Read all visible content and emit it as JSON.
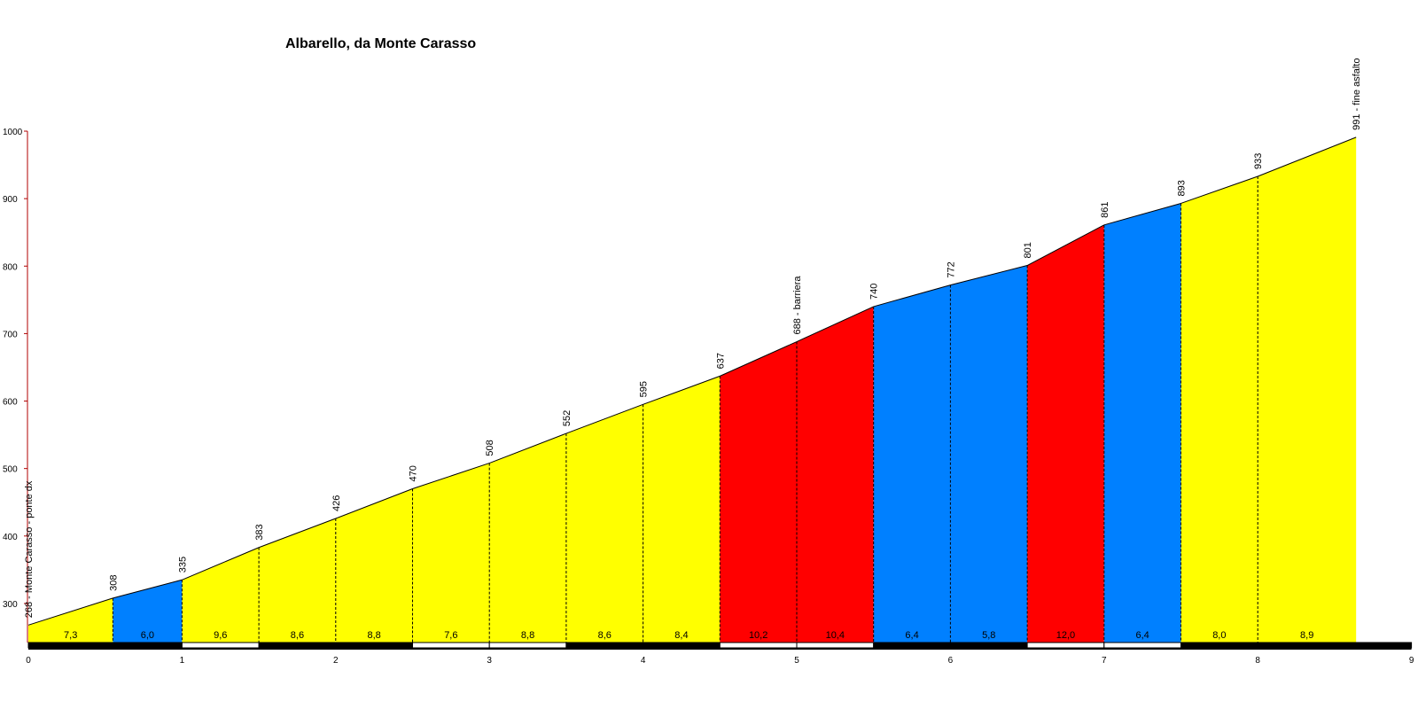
{
  "chart_data": {
    "type": "area",
    "title": "Albarello, da Monte Carasso",
    "xlabel": "",
    "ylabel": "",
    "xlim": [
      0,
      9
    ],
    "ylim": [
      250,
      1000
    ],
    "x_ticks": [
      "0",
      "1",
      "2",
      "3",
      "4",
      "5",
      "6",
      "7",
      "8",
      "9"
    ],
    "y_ticks": [
      "300",
      "400",
      "500",
      "600",
      "700",
      "800",
      "900",
      "1000"
    ],
    "grid": false,
    "profile": [
      {
        "x": 0.0,
        "alt": 268,
        "label": "268 - Monte Carasso - ponte dx"
      },
      {
        "x": 0.55,
        "alt": 308,
        "label": "308"
      },
      {
        "x": 1.0,
        "alt": 335,
        "label": "335"
      },
      {
        "x": 1.5,
        "alt": 383,
        "label": "383"
      },
      {
        "x": 2.0,
        "alt": 426,
        "label": "426"
      },
      {
        "x": 2.5,
        "alt": 470,
        "label": "470"
      },
      {
        "x": 3.0,
        "alt": 508,
        "label": "508"
      },
      {
        "x": 3.5,
        "alt": 552,
        "label": "552"
      },
      {
        "x": 4.0,
        "alt": 595,
        "label": "595"
      },
      {
        "x": 4.5,
        "alt": 637,
        "label": "637"
      },
      {
        "x": 5.0,
        "alt": 688,
        "label": "688 - barriera"
      },
      {
        "x": 5.5,
        "alt": 740,
        "label": "740"
      },
      {
        "x": 6.0,
        "alt": 772,
        "label": "772"
      },
      {
        "x": 6.5,
        "alt": 801,
        "label": "801"
      },
      {
        "x": 7.0,
        "alt": 861,
        "label": "861"
      },
      {
        "x": 7.5,
        "alt": 893,
        "label": "893"
      },
      {
        "x": 8.0,
        "alt": 933,
        "label": "933"
      },
      {
        "x": 8.64,
        "alt": 991,
        "label": "991 - fine asfalto"
      }
    ],
    "segments": [
      {
        "gradient": "7,3",
        "color": "#ffff00"
      },
      {
        "gradient": "6,0",
        "color": "#0080ff"
      },
      {
        "gradient": "9,6",
        "color": "#ffff00"
      },
      {
        "gradient": "8,6",
        "color": "#ffff00"
      },
      {
        "gradient": "8,8",
        "color": "#ffff00"
      },
      {
        "gradient": "7,6",
        "color": "#ffff00"
      },
      {
        "gradient": "8,8",
        "color": "#ffff00"
      },
      {
        "gradient": "8,6",
        "color": "#ffff00"
      },
      {
        "gradient": "8,4",
        "color": "#ffff00"
      },
      {
        "gradient": "10,2",
        "color": "#ff0000"
      },
      {
        "gradient": "10,4",
        "color": "#ff0000"
      },
      {
        "gradient": "6,4",
        "color": "#0080ff"
      },
      {
        "gradient": "5,8",
        "color": "#0080ff"
      },
      {
        "gradient": "12,0",
        "color": "#ff0000"
      },
      {
        "gradient": "6,4",
        "color": "#0080ff"
      },
      {
        "gradient": "8,0",
        "color": "#ffff00"
      },
      {
        "gradient": "8,9",
        "color": "#ffff00"
      }
    ],
    "colors": {
      "moderate": "#ffff00",
      "easy": "#0080ff",
      "steep": "#ff0000",
      "y_axis": "#b00000"
    }
  }
}
